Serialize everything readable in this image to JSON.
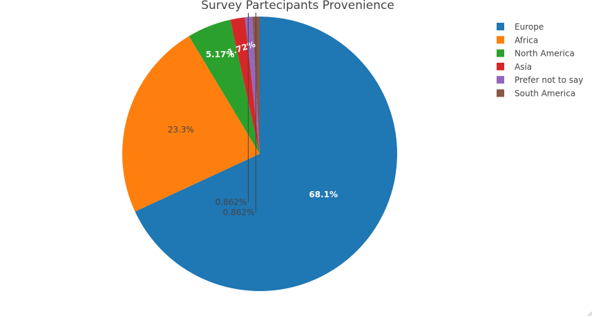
{
  "chart_data": {
    "type": "pie",
    "title": "Survey Partecipants Provenience",
    "slices": [
      {
        "label": "Europe",
        "value": 68.1,
        "text": "68.1%",
        "color": "#1f77b4",
        "text_color": "#ffffff"
      },
      {
        "label": "Africa",
        "value": 23.3,
        "text": "23.3%",
        "color": "#ff7f0e",
        "text_color": "#444444"
      },
      {
        "label": "North America",
        "value": 5.17,
        "text": "5.17%",
        "color": "#2ca02c",
        "text_color": "#ffffff"
      },
      {
        "label": "Asia",
        "value": 1.72,
        "text": "1.72%",
        "color": "#d62728",
        "text_color": "#ffffff"
      },
      {
        "label": "Prefer not to say",
        "value": 0.862,
        "text": "0.862%",
        "color": "#9467bd",
        "text_color": "#444444"
      },
      {
        "label": "South America",
        "value": 0.862,
        "text": "0.862%",
        "color": "#8c564b",
        "text_color": "#444444"
      }
    ],
    "legend_position": "top-right",
    "direction": "counterclockwise",
    "start": "top"
  }
}
